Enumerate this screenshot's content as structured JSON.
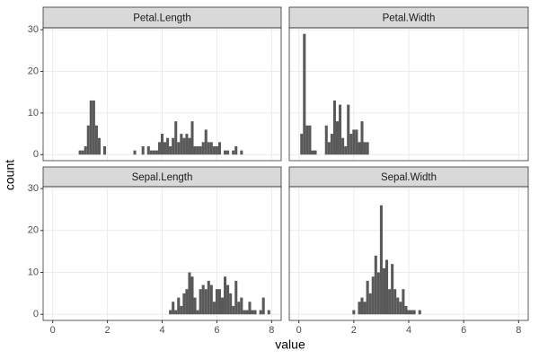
{
  "xlabel": "value",
  "ylabel": "count",
  "chart_data": [
    {
      "type": "histogram",
      "title": "Petal.Length",
      "color": "#595959",
      "grid": true,
      "bins": [
        0.95,
        1.05,
        1.15,
        1.25,
        1.35,
        1.45,
        1.55,
        1.65,
        1.75,
        1.85,
        1.95,
        2.05,
        2.15,
        2.25,
        2.35,
        2.45,
        2.55,
        2.65,
        2.75,
        2.85,
        2.95,
        3.05,
        3.15,
        3.25,
        3.35,
        3.45,
        3.55,
        3.65,
        3.75,
        3.85,
        3.95,
        4.05,
        4.15,
        4.25,
        4.35,
        4.45,
        4.55,
        4.65,
        4.75,
        4.85,
        4.95,
        5.05,
        5.15,
        5.25,
        5.35,
        5.45,
        5.55,
        5.65,
        5.75,
        5.85,
        5.95,
        6.05,
        6.15,
        6.25,
        6.35,
        6.45,
        6.55,
        6.65,
        6.75,
        6.85,
        6.95
      ],
      "counts": [
        1,
        1,
        2,
        7,
        13,
        13,
        7,
        4,
        0,
        2,
        0,
        0,
        0,
        0,
        0,
        0,
        0,
        0,
        0,
        0,
        1,
        0,
        0,
        2,
        0,
        2,
        1,
        1,
        1,
        3,
        5,
        3,
        4,
        2,
        4,
        8,
        3,
        5,
        4,
        5,
        4,
        8,
        2,
        2,
        2,
        3,
        6,
        3,
        3,
        2,
        2,
        3,
        0,
        1,
        1,
        0,
        1,
        2,
        0,
        1
      ],
      "xlim": [
        -0.35,
        8.35
      ],
      "xticks": [
        0,
        2,
        4,
        6,
        8
      ],
      "ylim": [
        -1.45,
        30.45
      ],
      "yticks": [
        0,
        10,
        20,
        30
      ]
    },
    {
      "type": "histogram",
      "title": "Petal.Width",
      "color": "#595959",
      "grid": true,
      "bins": [
        0.05,
        0.15,
        0.25,
        0.35,
        0.45,
        0.55,
        0.65,
        0.75,
        0.85,
        0.95,
        1.05,
        1.15,
        1.25,
        1.35,
        1.45,
        1.55,
        1.65,
        1.75,
        1.85,
        1.95,
        2.05,
        2.15,
        2.25,
        2.35,
        2.45,
        2.55
      ],
      "counts": [
        5,
        29,
        7,
        7,
        1,
        1,
        0,
        0,
        0,
        7,
        3,
        5,
        13,
        8,
        12,
        4,
        2,
        12,
        5,
        6,
        6,
        3,
        8,
        3,
        3
      ],
      "xlim": [
        -0.35,
        8.35
      ],
      "xticks": [
        0,
        2,
        4,
        6,
        8
      ],
      "ylim": [
        -1.45,
        30.45
      ],
      "yticks": [
        0,
        10,
        20,
        30
      ]
    },
    {
      "type": "histogram",
      "title": "Sepal.Length",
      "color": "#595959",
      "grid": true,
      "bins": [
        4.25,
        4.35,
        4.45,
        4.55,
        4.65,
        4.75,
        4.85,
        4.95,
        5.05,
        5.15,
        5.25,
        5.35,
        5.45,
        5.55,
        5.65,
        5.75,
        5.85,
        5.95,
        6.05,
        6.15,
        6.25,
        6.35,
        6.45,
        6.55,
        6.65,
        6.75,
        6.85,
        6.95,
        7.05,
        7.15,
        7.25,
        7.35,
        7.45,
        7.55,
        7.65,
        7.75,
        7.85,
        7.95
      ],
      "counts": [
        1,
        3,
        1,
        4,
        2,
        5,
        6,
        10,
        9,
        4,
        1,
        6,
        7,
        6,
        8,
        7,
        3,
        6,
        6,
        4,
        9,
        7,
        5,
        2,
        8,
        3,
        4,
        1,
        1,
        3,
        1,
        1,
        0,
        1,
        4,
        0,
        1
      ],
      "xlim": [
        -0.35,
        8.35
      ],
      "xticks": [
        0,
        2,
        4,
        6,
        8
      ],
      "ylim": [
        -1.45,
        30.45
      ],
      "yticks": [
        0,
        10,
        20,
        30
      ]
    },
    {
      "type": "histogram",
      "title": "Sepal.Width",
      "color": "#595959",
      "grid": true,
      "bins": [
        1.95,
        2.05,
        2.15,
        2.25,
        2.35,
        2.45,
        2.55,
        2.65,
        2.75,
        2.85,
        2.95,
        3.05,
        3.15,
        3.25,
        3.35,
        3.45,
        3.55,
        3.65,
        3.75,
        3.85,
        3.95,
        4.05,
        4.15,
        4.25,
        4.35,
        4.45
      ],
      "counts": [
        1,
        0,
        3,
        4,
        3,
        8,
        5,
        9,
        14,
        10,
        26,
        11,
        13,
        6,
        12,
        6,
        4,
        3,
        6,
        2,
        1,
        1,
        1,
        0,
        1
      ],
      "xlim": [
        -0.35,
        8.35
      ],
      "xticks": [
        0,
        2,
        4,
        6,
        8
      ],
      "ylim": [
        -1.45,
        30.45
      ],
      "yticks": [
        0,
        10,
        20,
        30
      ]
    }
  ]
}
